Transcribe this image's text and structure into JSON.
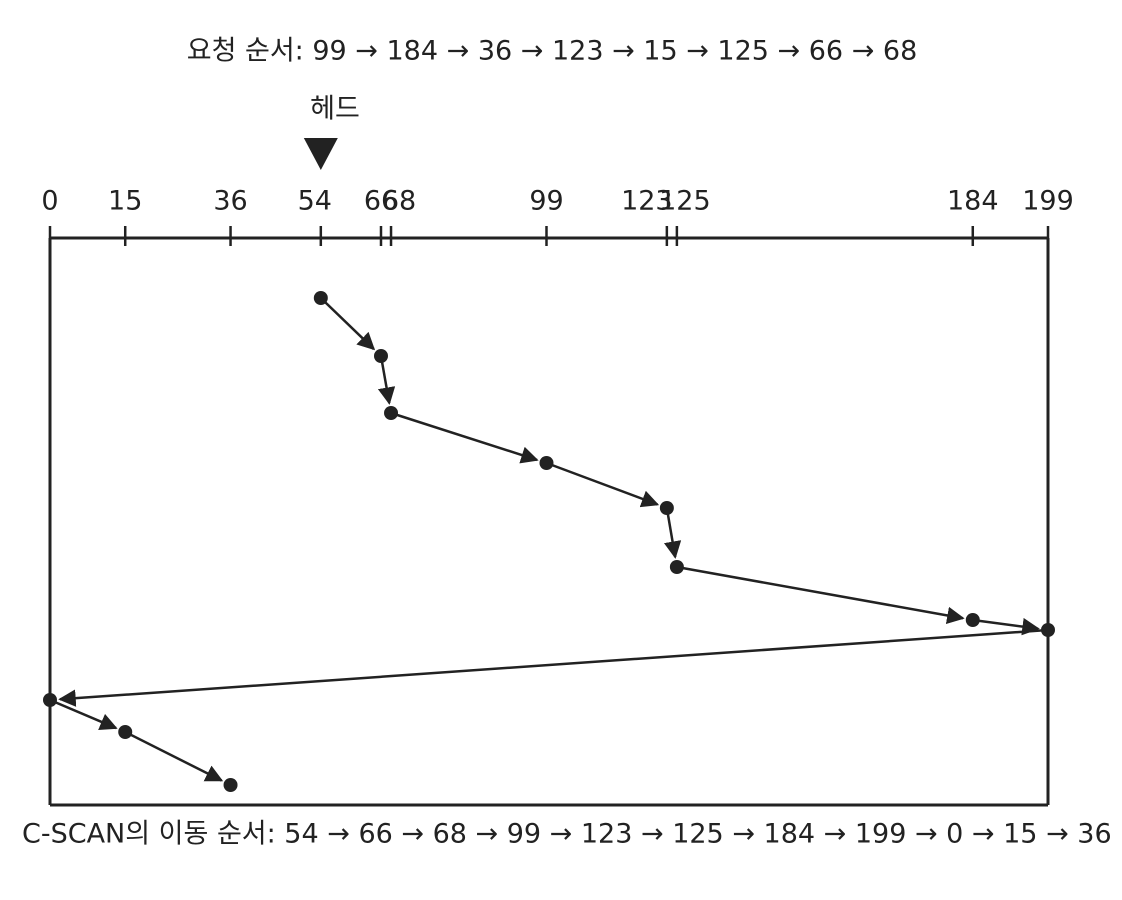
{
  "title": "요청 순서: 99 → 184 → 36 → 123 → 15 → 125 → 66 → 68",
  "head_label": "헤드",
  "axis": {
    "ticks": [
      0,
      15,
      36,
      54,
      66,
      68,
      99,
      123,
      125,
      184,
      199
    ]
  },
  "path": [
    54,
    66,
    68,
    99,
    123,
    125,
    184,
    199,
    0,
    15,
    36
  ],
  "caption": "C-SCAN의 이동 순서: 54 → 66 → 68 → 99 → 123 → 125 → 184 → 199 → 0 → 15 → 36"
}
